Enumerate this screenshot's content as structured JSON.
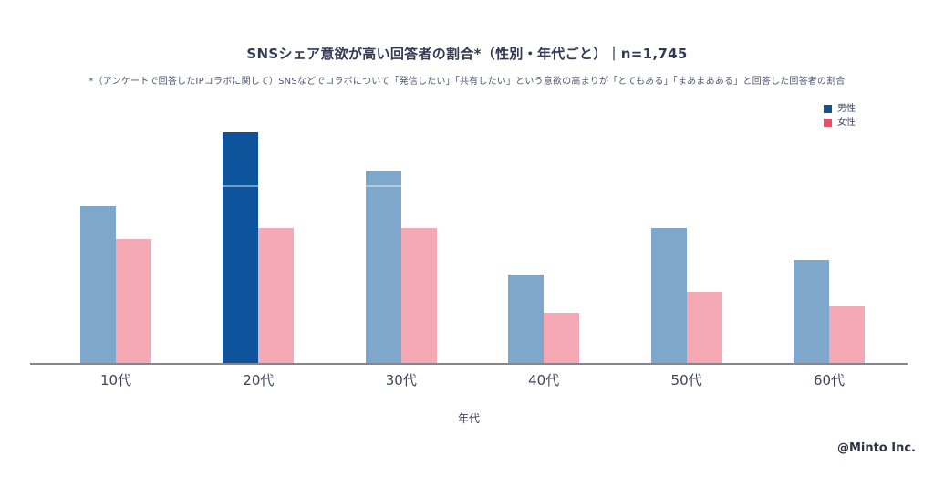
{
  "header": {
    "title": "SNSシェア意欲が高い回答者の割合*（性別・年代ごと）｜n=1,745",
    "subtitle": "*（アンケートで回答したIPコラボに関して）SNSなどでコラボについて「発信したい」「共有したい」という意欲の高まりが「とてもある」「まあまあある」と回答した回答者の割合"
  },
  "legend": [
    {
      "label": "男性",
      "color": "#15508f"
    },
    {
      "label": "女性",
      "color": "#e4516b"
    }
  ],
  "footer": {
    "credit": "@Minto Inc."
  },
  "chart_data": {
    "type": "bar",
    "categories": [
      "10代",
      "20代",
      "30代",
      "40代",
      "50代",
      "60代"
    ],
    "series": [
      {
        "name": "男性",
        "values": [
          44,
          65,
          54,
          25,
          38,
          29
        ]
      },
      {
        "name": "女性",
        "values": [
          35,
          38,
          38,
          14,
          20,
          16
        ]
      }
    ],
    "title": "SNSシェア意欲が高い回答者の割合*（性別・年代ごと）｜n=1,745",
    "xlabel": "年代",
    "ylabel": "",
    "unit": "%",
    "ylim": [
      0,
      100
    ],
    "y_axis_hidden": true,
    "grid": false,
    "faint_gridline_at": 50,
    "legend_position": "top-right",
    "highlight": {
      "series": "男性",
      "category": "20代"
    },
    "colors": {
      "male_bar": "#7fa7cc",
      "male_bar_highlight": "#0e549c",
      "female_bar": "#f4a9b4",
      "axis_line": "#84858f",
      "title_text": "#333a56"
    }
  }
}
